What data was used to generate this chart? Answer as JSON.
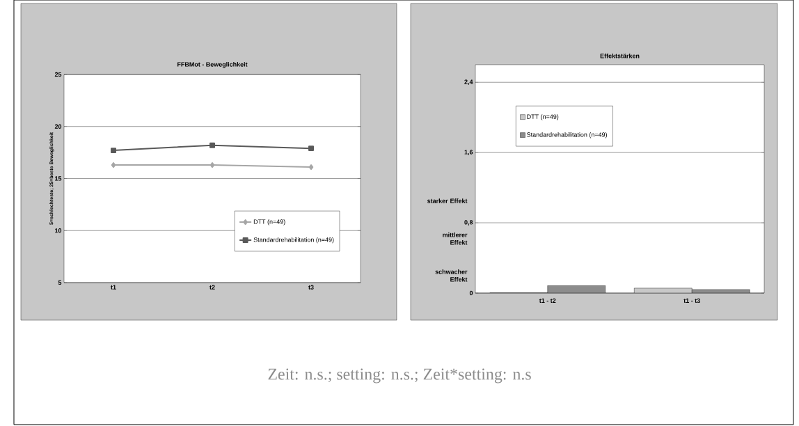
{
  "chart_data": [
    {
      "type": "line",
      "title": "FFBMot - Beweglichkeit",
      "ylabel": "5=schlechteste; 25=beste Beweglichkeit",
      "categories": [
        "t1",
        "t2",
        "t3"
      ],
      "series": [
        {
          "name": "DTT (n=49)",
          "color": "#a6a6a6",
          "marker": "diamond",
          "values": [
            16.3,
            16.3,
            16.1
          ]
        },
        {
          "name": "Standardrehabilitation (n=49)",
          "color": "#595959",
          "marker": "square",
          "values": [
            17.7,
            18.2,
            17.9
          ]
        }
      ],
      "ylim": [
        5,
        25
      ],
      "yticks": [
        5,
        10,
        15,
        20,
        25
      ],
      "grid": "y",
      "legend": "bottom right"
    },
    {
      "type": "bar",
      "title": "Effektstärken",
      "categories": [
        "t1 - t2",
        "t1 - t3"
      ],
      "series": [
        {
          "name": "DTT (n=49)",
          "color": "#c8c8c8",
          "values": [
            0,
            0.056
          ]
        },
        {
          "name": "Standardrehabilitation (n=49)",
          "color": "#8c8c8c",
          "values": [
            0.085,
            0.04
          ]
        }
      ],
      "ylim": [
        0,
        2.6
      ],
      "yticks": [
        0,
        {
          "value": 0.8,
          "label": "0,8"
        },
        {
          "value": 1.6,
          "label": "1,6"
        },
        {
          "value": 2.4,
          "label": "2,4"
        }
      ],
      "grid": "y",
      "legend": "top left",
      "annotations": [
        "starker Effekt",
        "mittlerer Effekt",
        "schwacher Effekt",
        "Zeit: n.s.; setting: n.s.;  Zeit*setting: n.s"
      ]
    }
  ]
}
